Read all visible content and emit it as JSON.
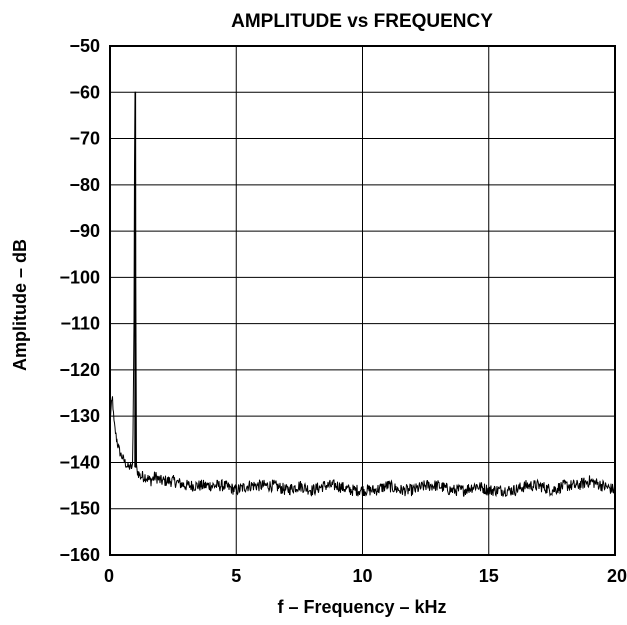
{
  "chart_data": {
    "type": "line",
    "title": "AMPLITUDE vs FREQUENCY",
    "xlabel": "f – Frequency – kHz",
    "ylabel": "Amplitude – dB",
    "xlim": [
      0,
      20
    ],
    "ylim": [
      -160,
      -50
    ],
    "x_ticks": [
      0,
      5,
      10,
      15,
      20
    ],
    "x_tick_labels": [
      "0",
      "5",
      "10",
      "15",
      "20"
    ],
    "y_ticks": [
      -50,
      -60,
      -70,
      -80,
      -90,
      -100,
      -110,
      -120,
      -130,
      -140,
      -150,
      -160
    ],
    "y_tick_labels": [
      "−50",
      "−60",
      "−70",
      "−80",
      "−90",
      "−100",
      "−110",
      "−120",
      "−130",
      "−140",
      "−150",
      "−160"
    ],
    "grid": true,
    "series": [
      {
        "x": [
          0.0,
          0.05,
          0.1,
          0.15,
          0.2,
          0.3,
          0.4,
          0.5,
          0.6,
          0.7,
          0.8,
          0.9,
          0.95,
          0.98,
          1.0,
          1.02,
          1.05,
          1.1,
          1.2,
          1.4,
          1.6,
          1.8,
          2.0,
          2.5,
          3.0,
          3.5,
          4.0,
          4.5,
          5.0,
          5.5,
          6.0,
          6.5,
          7.0,
          7.5,
          8.0,
          8.5,
          9.0,
          9.5,
          10.0,
          10.5,
          11.0,
          11.5,
          12.0,
          12.5,
          13.0,
          13.5,
          14.0,
          14.5,
          15.0,
          15.5,
          16.0,
          16.5,
          17.0,
          17.5,
          18.0,
          18.5,
          19.0,
          19.5,
          20.0
        ],
        "values": [
          -131,
          -128,
          -126,
          -131,
          -133,
          -136,
          -138,
          -139,
          -140,
          -141,
          -141,
          -141,
          -110,
          -60,
          -60,
          -100,
          -141,
          -142,
          -143,
          -143,
          -144,
          -143,
          -144,
          -144,
          -145,
          -145,
          -145,
          -145,
          -146,
          -145,
          -145,
          -145,
          -146,
          -145,
          -146,
          -145,
          -145,
          -146,
          -146,
          -146,
          -145,
          -146,
          -146,
          -145,
          -145,
          -146,
          -146,
          -145,
          -146,
          -146,
          -146,
          -145,
          -145,
          -146,
          -145,
          -145,
          -144,
          -145,
          -146
        ]
      }
    ]
  }
}
